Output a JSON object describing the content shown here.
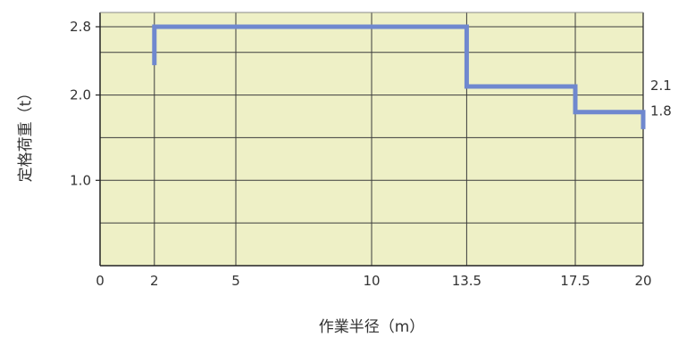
{
  "chart_data": {
    "type": "line",
    "title": "",
    "xlabel": "作業半径（m）",
    "ylabel": "定格荷重（t）",
    "xlim": [
      0,
      20
    ],
    "ylim": [
      0,
      2.8
    ],
    "grid": true,
    "colors": {
      "line": "#6f88cf",
      "plot_bg": "#eef0c6",
      "grid": "#3c3c3c"
    },
    "x_ticks": [
      {
        "value": 0,
        "label": "0"
      },
      {
        "value": 2,
        "label": "2"
      },
      {
        "value": 5,
        "label": "5"
      },
      {
        "value": 10,
        "label": "10"
      },
      {
        "value": 13.5,
        "label": "13.5"
      },
      {
        "value": 17.5,
        "label": "17.5"
      },
      {
        "value": 20,
        "label": "20"
      }
    ],
    "y_ticks": [
      {
        "value": 2.8,
        "label": "2.8"
      },
      {
        "value": 2.0,
        "label": "2.0"
      },
      {
        "value": 1.0,
        "label": "1.0"
      }
    ],
    "series": [
      {
        "x": [
          2,
          2,
          13.5,
          13.5,
          17.5,
          17.5,
          20,
          20
        ],
        "y": [
          2.35,
          2.8,
          2.8,
          2.1,
          2.1,
          1.8,
          1.8,
          1.6
        ]
      }
    ],
    "annotations": [
      {
        "value": 2.1,
        "text": "2.1"
      },
      {
        "value": 1.8,
        "text": "1.8"
      }
    ]
  }
}
